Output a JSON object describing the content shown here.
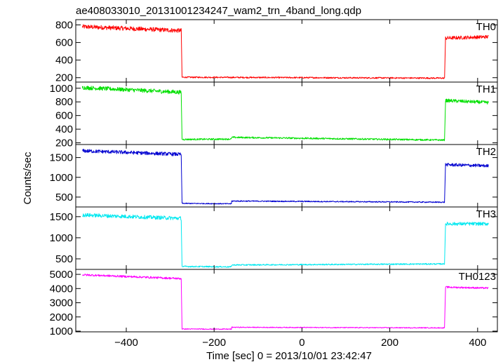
{
  "header": {
    "title": "ae408033010_20131001234247_wam2_trn_4band_long.qdp"
  },
  "chart_data": {
    "type": "line",
    "title": "ae408033010_20131001234247_wam2_trn_4band_long.qdp",
    "xlabel": "Time [sec] 0 = 2013/10/01 23:42:47",
    "ylabel": "Counts/sec",
    "xlim": [
      -515,
      445
    ],
    "x_ticks": [
      -400,
      -200,
      0,
      200,
      400
    ],
    "x_tick_labels": [
      "−400",
      "−200",
      "0",
      "200",
      "400"
    ],
    "grid": false,
    "series": [
      {
        "name": "TH0",
        "color": "#ff0000",
        "ylim": [
          150,
          860
        ],
        "y_ticks": [
          200,
          400,
          600,
          800
        ],
        "segments": [
          {
            "x_start": -500,
            "x_end": -275,
            "y_start": 780,
            "y_end": 735,
            "noise": 25
          },
          {
            "x_start": -273,
            "x_end": 325,
            "y_start": 205,
            "y_end": 195,
            "noise": 8
          },
          {
            "x_start": 327,
            "x_end": 425,
            "y_start": 650,
            "y_end": 665,
            "noise": 20
          }
        ]
      },
      {
        "name": "TH1",
        "color": "#00e000",
        "ylim": [
          175,
          1090
        ],
        "y_ticks": [
          200,
          400,
          600,
          800,
          1000
        ],
        "segments": [
          {
            "x_start": -500,
            "x_end": -275,
            "y_start": 1010,
            "y_end": 940,
            "noise": 30
          },
          {
            "x_start": -273,
            "x_end": -160,
            "y_start": 250,
            "y_end": 255,
            "noise": 12
          },
          {
            "x_start": -160,
            "x_end": 325,
            "y_start": 280,
            "y_end": 240,
            "noise": 12
          },
          {
            "x_start": 327,
            "x_end": 425,
            "y_start": 820,
            "y_end": 790,
            "noise": 25
          }
        ]
      },
      {
        "name": "TH2",
        "color": "#0000d0",
        "ylim": [
          250,
          1830
        ],
        "y_ticks": [
          500,
          1000,
          1500
        ],
        "segments": [
          {
            "x_start": -500,
            "x_end": -275,
            "y_start": 1670,
            "y_end": 1580,
            "noise": 45
          },
          {
            "x_start": -273,
            "x_end": -160,
            "y_start": 340,
            "y_end": 330,
            "noise": 12
          },
          {
            "x_start": -160,
            "x_end": 325,
            "y_start": 400,
            "y_end": 370,
            "noise": 14
          },
          {
            "x_start": 327,
            "x_end": 425,
            "y_start": 1320,
            "y_end": 1290,
            "noise": 40
          }
        ]
      },
      {
        "name": "TH3",
        "color": "#00e8f0",
        "ylim": [
          250,
          1730
        ],
        "y_ticks": [
          500,
          1000,
          1500
        ],
        "segments": [
          {
            "x_start": -500,
            "x_end": -275,
            "y_start": 1540,
            "y_end": 1460,
            "noise": 45
          },
          {
            "x_start": -273,
            "x_end": -160,
            "y_start": 320,
            "y_end": 310,
            "noise": 15
          },
          {
            "x_start": -160,
            "x_end": 325,
            "y_start": 355,
            "y_end": 380,
            "noise": 15
          },
          {
            "x_start": 327,
            "x_end": 425,
            "y_start": 1330,
            "y_end": 1330,
            "noise": 40
          }
        ]
      },
      {
        "name": "TH0123",
        "color": "#ff00ff",
        "ylim": [
          950,
          5350
        ],
        "y_ticks": [
          1000,
          2000,
          3000,
          4000,
          5000
        ],
        "segments": [
          {
            "x_start": -500,
            "x_end": -275,
            "y_start": 4970,
            "y_end": 4700,
            "noise": 70
          },
          {
            "x_start": -273,
            "x_end": -160,
            "y_start": 1150,
            "y_end": 1140,
            "noise": 30
          },
          {
            "x_start": -160,
            "x_end": 325,
            "y_start": 1270,
            "y_end": 1230,
            "noise": 30
          },
          {
            "x_start": 327,
            "x_end": 425,
            "y_start": 4100,
            "y_end": 4030,
            "noise": 60
          }
        ]
      }
    ]
  }
}
